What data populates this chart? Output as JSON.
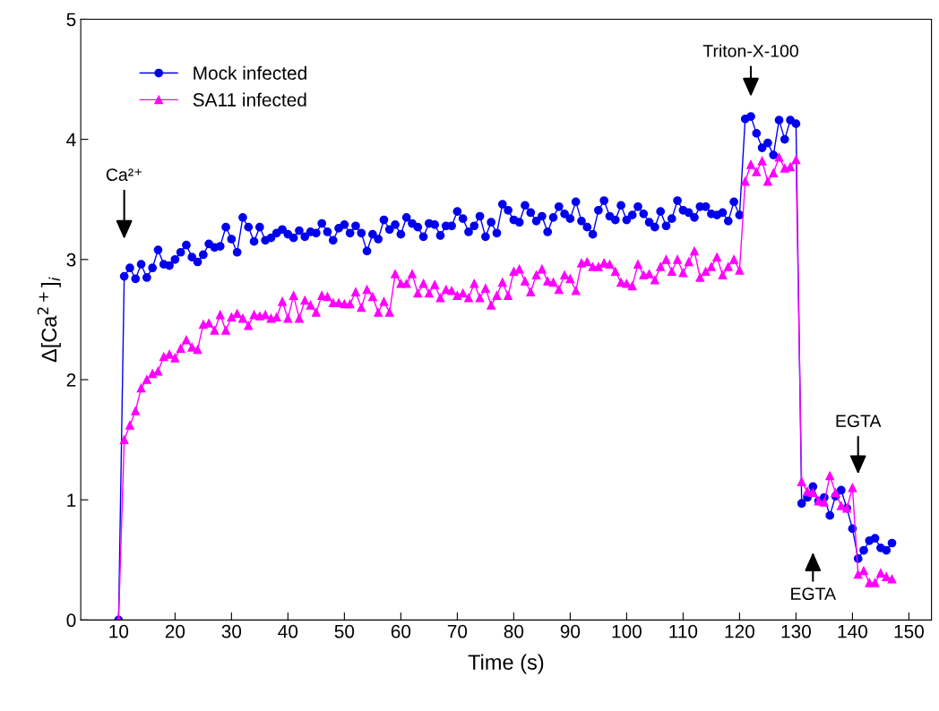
{
  "chart_data": {
    "type": "line",
    "xlabel": "Time (s)",
    "ylabel": "Δ[Ca$^{2+}$]$_{i}$",
    "xlim": [
      3.3,
      154
    ],
    "ylim": [
      0,
      5
    ],
    "xticks": [
      10,
      20,
      30,
      40,
      50,
      60,
      70,
      80,
      90,
      100,
      110,
      120,
      130,
      140,
      150
    ],
    "yticks": [
      0,
      1,
      2,
      3,
      4,
      5
    ],
    "grid": false,
    "legend": "top left",
    "x": [
      10,
      11,
      12,
      13,
      14,
      15,
      16,
      17,
      18,
      19,
      20,
      21,
      22,
      23,
      24,
      25,
      26,
      27,
      28,
      29,
      30,
      31,
      32,
      33,
      34,
      35,
      36,
      37,
      38,
      39,
      40,
      41,
      42,
      43,
      44,
      45,
      46,
      47,
      48,
      49,
      50,
      51,
      52,
      53,
      54,
      55,
      56,
      57,
      58,
      59,
      60,
      61,
      62,
      63,
      64,
      65,
      66,
      67,
      68,
      69,
      70,
      71,
      72,
      73,
      74,
      75,
      76,
      77,
      78,
      79,
      80,
      81,
      82,
      83,
      84,
      85,
      86,
      87,
      88,
      89,
      90,
      91,
      92,
      93,
      94,
      95,
      96,
      97,
      98,
      99,
      100,
      101,
      102,
      103,
      104,
      105,
      106,
      107,
      108,
      109,
      110,
      111,
      112,
      113,
      114,
      115,
      116,
      117,
      118,
      119,
      120,
      121,
      122,
      123,
      124,
      125,
      126,
      127,
      128,
      129,
      130,
      131,
      132,
      133,
      134,
      135,
      136,
      137,
      138,
      139,
      140,
      141,
      142,
      143,
      144,
      145,
      146,
      147
    ],
    "series": [
      {
        "name": "Mock infected",
        "color": "#0000ee",
        "marker": "circle",
        "values": [
          0,
          2.86,
          2.93,
          2.84,
          2.96,
          2.85,
          2.93,
          3.08,
          2.96,
          2.95,
          3.0,
          3.06,
          3.12,
          3.02,
          2.98,
          3.04,
          3.13,
          3.1,
          3.11,
          3.27,
          3.17,
          3.06,
          3.35,
          3.27,
          3.15,
          3.27,
          3.16,
          3.18,
          3.22,
          3.25,
          3.21,
          3.18,
          3.24,
          3.19,
          3.23,
          3.22,
          3.3,
          3.23,
          3.16,
          3.26,
          3.29,
          3.22,
          3.28,
          3.22,
          3.07,
          3.21,
          3.17,
          3.33,
          3.25,
          3.29,
          3.21,
          3.35,
          3.3,
          3.27,
          3.19,
          3.3,
          3.29,
          3.2,
          3.28,
          3.28,
          3.4,
          3.34,
          3.23,
          3.28,
          3.36,
          3.19,
          3.31,
          3.22,
          3.46,
          3.41,
          3.33,
          3.31,
          3.45,
          3.39,
          3.32,
          3.36,
          3.23,
          3.35,
          3.44,
          3.38,
          3.34,
          3.48,
          3.32,
          3.27,
          3.21,
          3.41,
          3.49,
          3.36,
          3.33,
          3.45,
          3.33,
          3.37,
          3.44,
          3.38,
          3.31,
          3.27,
          3.4,
          3.28,
          3.34,
          3.49,
          3.41,
          3.39,
          3.35,
          3.44,
          3.44,
          3.38,
          3.37,
          3.39,
          3.32,
          3.48,
          3.37,
          4.17,
          4.19,
          4.05,
          3.93,
          3.97,
          3.87,
          4.16,
          4.0,
          4.16,
          4.13,
          0.97,
          1.02,
          1.11,
          0.99,
          1.02,
          0.87,
          1.03,
          1.08,
          0.93,
          0.76,
          0.51,
          0.58,
          0.66,
          0.68,
          0.6,
          0.58,
          0.64
        ]
      },
      {
        "name": "SA11 infected",
        "color": "#ff00ff",
        "marker": "triangle",
        "values": [
          0,
          1.5,
          1.62,
          1.74,
          1.93,
          2.0,
          2.05,
          2.07,
          2.19,
          2.21,
          2.18,
          2.26,
          2.33,
          2.27,
          2.25,
          2.46,
          2.47,
          2.41,
          2.54,
          2.41,
          2.52,
          2.55,
          2.51,
          2.45,
          2.54,
          2.53,
          2.54,
          2.51,
          2.52,
          2.65,
          2.51,
          2.7,
          2.51,
          2.66,
          2.62,
          2.56,
          2.7,
          2.69,
          2.64,
          2.64,
          2.63,
          2.63,
          2.73,
          2.6,
          2.75,
          2.69,
          2.56,
          2.65,
          2.56,
          2.88,
          2.8,
          2.8,
          2.88,
          2.72,
          2.8,
          2.72,
          2.79,
          2.68,
          2.75,
          2.74,
          2.7,
          2.72,
          2.68,
          2.8,
          2.68,
          2.76,
          2.62,
          2.7,
          2.81,
          2.7,
          2.9,
          2.92,
          2.82,
          2.73,
          2.87,
          2.92,
          2.82,
          2.81,
          2.75,
          2.87,
          2.84,
          2.74,
          2.97,
          2.98,
          2.94,
          2.94,
          2.97,
          2.96,
          2.9,
          2.81,
          2.8,
          2.78,
          2.96,
          2.87,
          2.88,
          2.83,
          2.94,
          3.0,
          2.9,
          3.0,
          2.89,
          2.98,
          3.07,
          2.85,
          2.9,
          2.94,
          3.02,
          2.87,
          2.94,
          3.0,
          2.91,
          3.65,
          3.79,
          3.73,
          3.82,
          3.65,
          3.72,
          3.85,
          3.76,
          3.77,
          3.83,
          1.15,
          1.07,
          1.06,
          0.99,
          0.98,
          1.2,
          1.06,
          0.95,
          0.93,
          1.1,
          0.38,
          0.41,
          0.31,
          0.31,
          0.39,
          0.36,
          0.34
        ]
      }
    ],
    "annotations": [
      "Ca²⁺",
      "Triton-X-100",
      "EGTA",
      "EGTA"
    ]
  }
}
